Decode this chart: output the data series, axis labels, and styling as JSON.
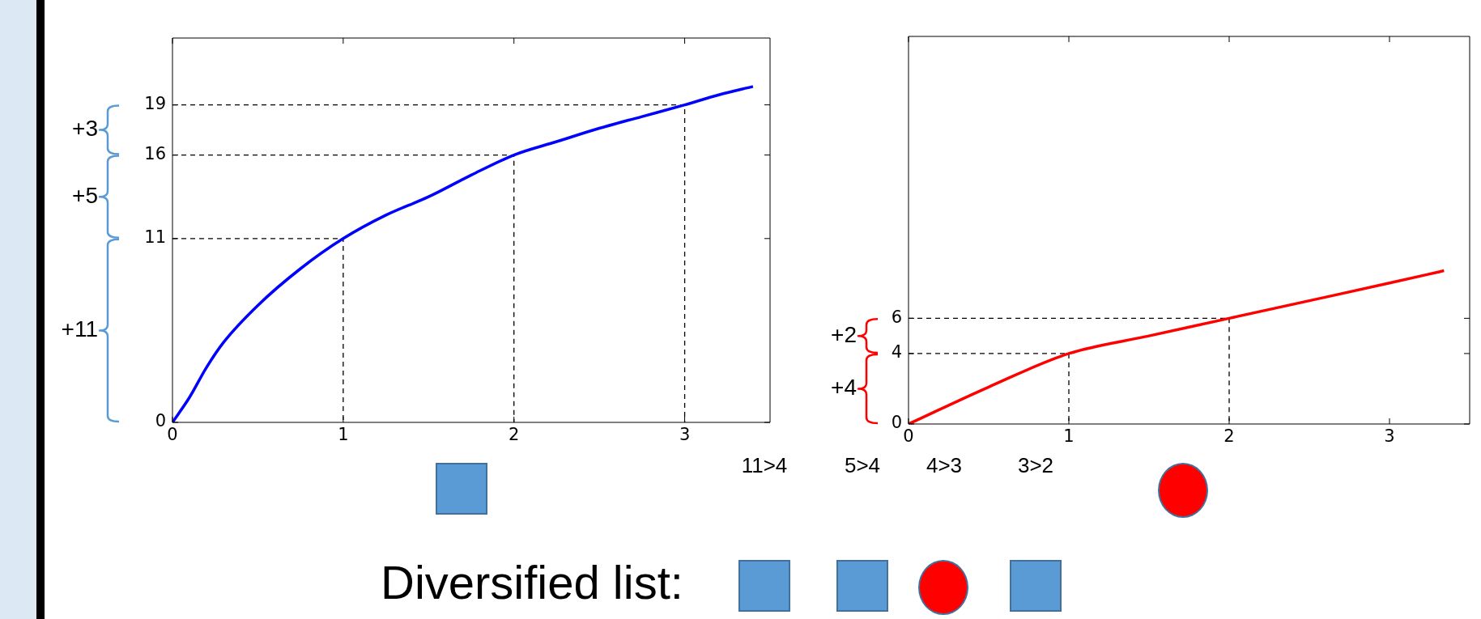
{
  "chart_data": [
    {
      "type": "line",
      "x": [
        0,
        0.1,
        0.2,
        0.3,
        0.5,
        0.75,
        1,
        1.25,
        1.5,
        1.75,
        2,
        2.25,
        2.5,
        2.75,
        3,
        3.2,
        3.4
      ],
      "series": [
        {
          "color": "#0000ff",
          "values": [
            0,
            1.5,
            3.3,
            4.8,
            7.0,
            9.2,
            11,
            12.4,
            13.5,
            14.8,
            16,
            16.8,
            17.6,
            18.3,
            19,
            19.6,
            20.1
          ]
        },
        {
          "color": "#000000",
          "line_style": "dashed",
          "x": [
            0,
            1,
            1
          ],
          "values": [
            11,
            11,
            0
          ]
        },
        {
          "color": "#000000",
          "line_style": "dashed",
          "x": [
            0,
            2,
            2
          ],
          "values": [
            16,
            16,
            0
          ]
        },
        {
          "color": "#000000",
          "line_style": "dashed",
          "x": [
            0,
            3,
            3
          ],
          "values": [
            19,
            19,
            0
          ]
        }
      ],
      "xlim": [
        0,
        3.5
      ],
      "ylim": [
        0,
        23
      ],
      "xticks": [
        0,
        1,
        2,
        3
      ],
      "yticks": [
        0,
        11,
        16,
        19
      ],
      "annotations": [
        "+3",
        "+5",
        "+11"
      ]
    },
    {
      "type": "line",
      "x": [
        0,
        0.5,
        1,
        1.5,
        2,
        2.5,
        3,
        3.34
      ],
      "series": [
        {
          "color": "#ff0000",
          "values": [
            0,
            2.1,
            4,
            5.0,
            6,
            7.0,
            8.0,
            8.7
          ]
        },
        {
          "color": "#000000",
          "line_style": "dashed",
          "x": [
            0,
            1,
            1
          ],
          "values": [
            4,
            4,
            0
          ]
        },
        {
          "color": "#000000",
          "line_style": "dashed",
          "x": [
            0,
            2,
            2
          ],
          "values": [
            6,
            6,
            0
          ]
        }
      ],
      "xlim": [
        0,
        3.5
      ],
      "ylim": [
        0,
        22
      ],
      "xticks": [
        0,
        1,
        2,
        3
      ],
      "yticks": [
        0,
        4,
        6
      ],
      "annotations": [
        "+2",
        "+4"
      ]
    },
    {
      "type": "other",
      "annotations": [
        "11>4",
        "5>4",
        "4>3",
        "3>2",
        "Diversified list:"
      ]
    }
  ]
}
